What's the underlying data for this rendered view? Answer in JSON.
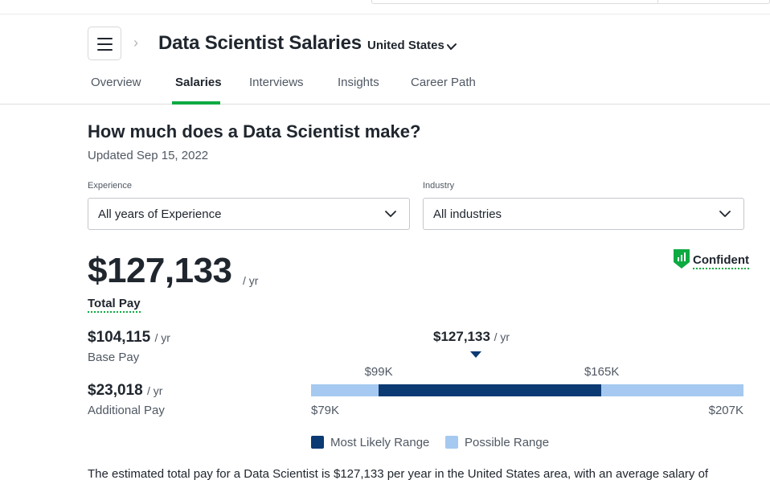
{
  "header": {
    "title": "Data Scientist Salaries",
    "location": "United States",
    "breadcrumb_separator": "›"
  },
  "tabs": [
    {
      "label": "Overview"
    },
    {
      "label": "Salaries",
      "active": true
    },
    {
      "label": "Interviews"
    },
    {
      "label": "Insights"
    },
    {
      "label": "Career Path"
    }
  ],
  "main": {
    "heading": "How much does a Data Scientist make?",
    "updated": "Updated Sep 15, 2022"
  },
  "filters": {
    "experience": {
      "label": "Experience",
      "value": "All years of Experience"
    },
    "industry": {
      "label": "Industry",
      "value": "All industries"
    }
  },
  "pay": {
    "total_value": "$127,133",
    "unit": "/ yr",
    "total_label": "Total Pay",
    "confidence": "Confident",
    "base_value": "$104,115",
    "base_label": "Base Pay",
    "additional_value": "$23,018",
    "additional_label": "Additional Pay"
  },
  "range": {
    "median_label": "$127,133",
    "likely_low_label": "$99K",
    "likely_high_label": "$165K",
    "min_label": "$79K",
    "max_label": "$207K",
    "min": 79,
    "max": 207,
    "likely_low": 99,
    "likely_high": 165,
    "median": 127.133,
    "legend_likely": "Most Likely Range",
    "legend_possible": "Possible Range"
  },
  "colors": {
    "accent_green": "#0caa41",
    "likely_range": "#0c3a73",
    "possible_range": "#a5c9f0"
  },
  "summary": "The estimated total pay for a Data Scientist is $127,133 per year in the United States area, with an average salary of"
}
